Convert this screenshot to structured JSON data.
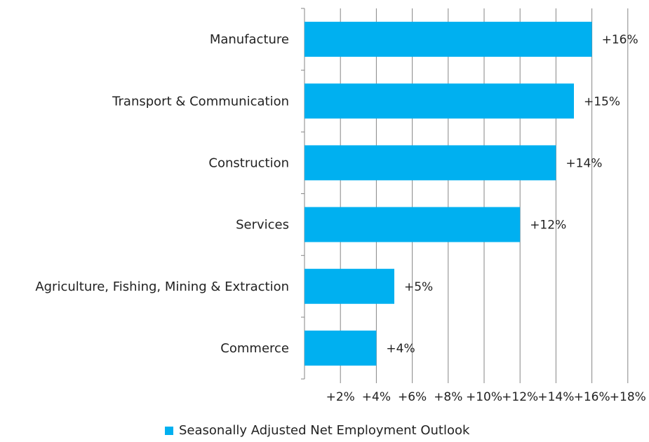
{
  "chart_data": {
    "type": "bar",
    "orientation": "horizontal",
    "categories": [
      "Manufacture",
      "Transport & Communication",
      "Construction",
      "Services",
      "Agriculture, Fishing, Mining & Extraction",
      "Commerce"
    ],
    "series": [
      {
        "name": "Seasonally Adjusted Net Employment Outlook",
        "values": [
          16,
          15,
          14,
          12,
          5,
          4
        ],
        "data_labels": [
          "+16%",
          "+15%",
          "+14%",
          "+12%",
          "+5%",
          "+4%"
        ],
        "color": "#00B0F0"
      }
    ],
    "x_ticks": [
      2,
      4,
      6,
      8,
      10,
      12,
      14,
      16,
      18
    ],
    "x_tick_labels": [
      "+2%",
      "+4%",
      "+6%",
      "+8%",
      "+10%",
      "+12%",
      "+14%",
      "+16%",
      "+18%"
    ],
    "xlim": [
      0,
      18
    ],
    "grid": "vertical",
    "legend_position": "bottom",
    "gridline_color": "#868686"
  }
}
